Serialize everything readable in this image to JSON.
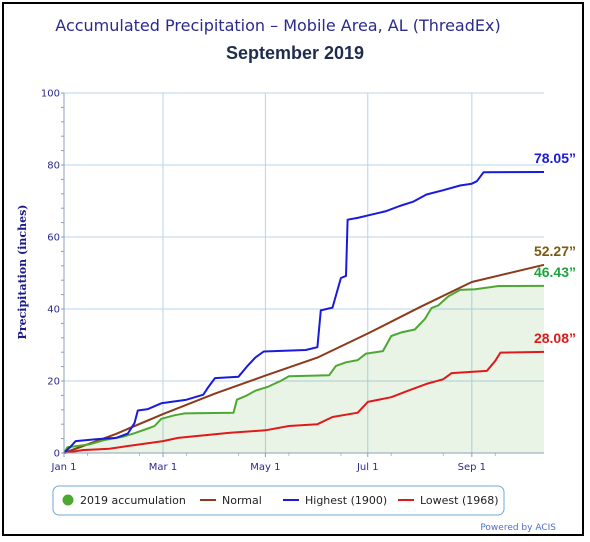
{
  "chart_data": {
    "type": "line",
    "title": "Accumulated Precipitation – Mobile Area, AL (ThreadEx)",
    "subtitle": "September 2019",
    "xlabel": "",
    "ylabel": "Precipitation (inches)",
    "ylim": [
      0,
      100
    ],
    "xlim": [
      "2019-01-01",
      "2019-10-14"
    ],
    "x_ticks": [
      "Jan 1",
      "Mar 1",
      "May 1",
      "Jul 1",
      "Sep 1"
    ],
    "y_ticks": [
      0,
      20,
      40,
      60,
      80,
      100
    ],
    "grid": true,
    "legend_position": "bottom",
    "series": [
      {
        "name": "2019 accumulation",
        "color": "#4da832",
        "fill": true,
        "end_label": "46.43”",
        "points": [
          [
            "2019-01-01",
            0
          ],
          [
            "2019-01-03",
            1.6
          ],
          [
            "2019-01-10",
            2
          ],
          [
            "2019-01-16",
            2.4
          ],
          [
            "2019-01-25",
            3.6
          ],
          [
            "2019-02-05",
            4.5
          ],
          [
            "2019-02-12",
            5.5
          ],
          [
            "2019-02-20",
            6.8
          ],
          [
            "2019-02-24",
            7.5
          ],
          [
            "2019-02-28",
            9.5
          ],
          [
            "2019-03-08",
            10.5
          ],
          [
            "2019-03-14",
            11
          ],
          [
            "2019-04-12",
            11.2
          ],
          [
            "2019-04-14",
            14.8
          ],
          [
            "2019-04-20",
            16
          ],
          [
            "2019-04-25",
            17.3
          ],
          [
            "2019-05-02",
            18.3
          ],
          [
            "2019-05-10",
            20
          ],
          [
            "2019-05-15",
            21.3
          ],
          [
            "2019-06-08",
            21.6
          ],
          [
            "2019-06-12",
            24.2
          ],
          [
            "2019-06-18",
            25.2
          ],
          [
            "2019-06-25",
            25.8
          ],
          [
            "2019-06-30",
            27.6
          ],
          [
            "2019-07-10",
            28.3
          ],
          [
            "2019-07-15",
            32.5
          ],
          [
            "2019-07-21",
            33.5
          ],
          [
            "2019-07-29",
            34.3
          ],
          [
            "2019-08-04",
            37.2
          ],
          [
            "2019-08-08",
            40.3
          ],
          [
            "2019-08-12",
            41
          ],
          [
            "2019-08-18",
            43.5
          ],
          [
            "2019-08-25",
            45.3
          ],
          [
            "2019-09-03",
            45.5
          ],
          [
            "2019-09-17",
            46.4
          ],
          [
            "2019-10-14",
            46.43
          ]
        ]
      },
      {
        "name": "Normal",
        "color": "#8b3a1a",
        "fill": false,
        "end_label": "52.27”",
        "points": [
          [
            "2019-01-01",
            0
          ],
          [
            "2019-02-01",
            5.3
          ],
          [
            "2019-03-01",
            10.8
          ],
          [
            "2019-04-01",
            16.5
          ],
          [
            "2019-05-01",
            21.5
          ],
          [
            "2019-06-01",
            26.5
          ],
          [
            "2019-07-01",
            33.2
          ],
          [
            "2019-08-01",
            40.5
          ],
          [
            "2019-09-01",
            47.5
          ],
          [
            "2019-10-14",
            52.27
          ]
        ]
      },
      {
        "name": "Highest (1900)",
        "color": "#1a1adc",
        "fill": false,
        "end_label": "78.05”",
        "points": [
          [
            "2019-01-01",
            0
          ],
          [
            "2019-01-05",
            1.8
          ],
          [
            "2019-01-08",
            3.3
          ],
          [
            "2019-01-20",
            3.8
          ],
          [
            "2019-02-01",
            4.2
          ],
          [
            "2019-02-08",
            5.4
          ],
          [
            "2019-02-12",
            8.3
          ],
          [
            "2019-02-14",
            11.8
          ],
          [
            "2019-02-20",
            12.2
          ],
          [
            "2019-02-28",
            13.8
          ],
          [
            "2019-03-15",
            14.8
          ],
          [
            "2019-03-25",
            16.2
          ],
          [
            "2019-03-28",
            18.3
          ],
          [
            "2019-04-01",
            20.8
          ],
          [
            "2019-04-15",
            21.2
          ],
          [
            "2019-04-20",
            24
          ],
          [
            "2019-04-25",
            26.5
          ],
          [
            "2019-04-30",
            28.2
          ],
          [
            "2019-05-25",
            28.6
          ],
          [
            "2019-06-01",
            29.4
          ],
          [
            "2019-06-03",
            39.6
          ],
          [
            "2019-06-10",
            40.4
          ],
          [
            "2019-06-15",
            48.6
          ],
          [
            "2019-06-18",
            49.2
          ],
          [
            "2019-06-19",
            64.8
          ],
          [
            "2019-06-25",
            65.3
          ],
          [
            "2019-07-03",
            66.2
          ],
          [
            "2019-07-12",
            67.2
          ],
          [
            "2019-07-20",
            68.6
          ],
          [
            "2019-07-28",
            69.8
          ],
          [
            "2019-08-05",
            71.8
          ],
          [
            "2019-08-15",
            73
          ],
          [
            "2019-08-25",
            74.3
          ],
          [
            "2019-09-01",
            74.8
          ],
          [
            "2019-09-04",
            75.5
          ],
          [
            "2019-09-08",
            78
          ],
          [
            "2019-10-14",
            78.05
          ]
        ]
      },
      {
        "name": "Lowest (1968)",
        "color": "#e01a1a",
        "fill": false,
        "end_label": "28.08”",
        "points": [
          [
            "2019-01-01",
            0
          ],
          [
            "2019-01-12",
            0.8
          ],
          [
            "2019-01-28",
            1.2
          ],
          [
            "2019-02-12",
            2.2
          ],
          [
            "2019-03-01",
            3.3
          ],
          [
            "2019-03-10",
            4.2
          ],
          [
            "2019-03-25",
            4.9
          ],
          [
            "2019-04-10",
            5.6
          ],
          [
            "2019-05-01",
            6.3
          ],
          [
            "2019-05-15",
            7.5
          ],
          [
            "2019-06-01",
            8
          ],
          [
            "2019-06-10",
            10
          ],
          [
            "2019-06-25",
            11.2
          ],
          [
            "2019-07-01",
            14.2
          ],
          [
            "2019-07-15",
            15.5
          ],
          [
            "2019-07-25",
            17.3
          ],
          [
            "2019-08-05",
            19.2
          ],
          [
            "2019-08-15",
            20.5
          ],
          [
            "2019-08-20",
            22.2
          ],
          [
            "2019-09-10",
            22.8
          ],
          [
            "2019-09-15",
            25.6
          ],
          [
            "2019-09-18",
            27.9
          ],
          [
            "2019-10-14",
            28.08
          ]
        ]
      }
    ]
  },
  "footer": {
    "credit": "Powered by ACIS"
  }
}
